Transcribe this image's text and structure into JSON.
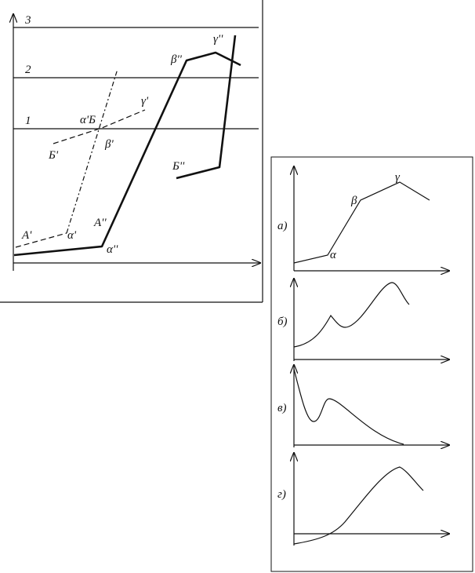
{
  "left": {
    "levels": [
      "3",
      "2",
      "1"
    ],
    "labels": [
      "α'Б",
      "γ'",
      "Б'",
      "β'",
      "β''",
      "γ''",
      "Б''",
      "A'",
      "α'",
      "A''",
      "α''"
    ]
  },
  "panels": [
    {
      "label": "а)",
      "points": [
        "α",
        "β",
        "γ"
      ]
    },
    {
      "label": "б)"
    },
    {
      "label": "в)"
    },
    {
      "label": "г)"
    }
  ]
}
